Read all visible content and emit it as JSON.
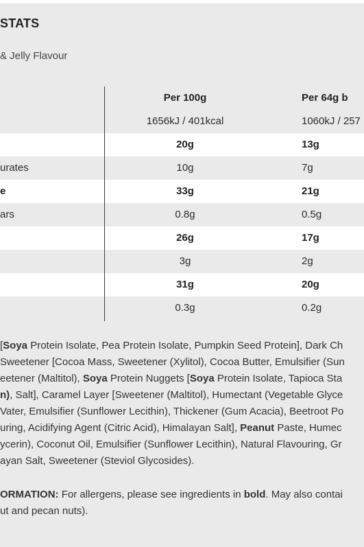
{
  "header": {
    "title": "STATS",
    "flavour": "& Jelly Flavour"
  },
  "table": {
    "col1_header": "Per 100g",
    "col2_header": "Per 64g b",
    "energy_col1": "1656kJ / 401kcal",
    "energy_col2": "1060kJ / 257",
    "rows": [
      {
        "label": "",
        "v1": "20g",
        "v2": "13g",
        "bold": true
      },
      {
        "label": "urates",
        "v1": "10g",
        "v2": "7g",
        "bold": false
      },
      {
        "label": "e",
        "v1": "33g",
        "v2": "21g",
        "bold": true
      },
      {
        "label": "ars",
        "v1": "0.8g",
        "v2": "0.5g",
        "bold": false
      },
      {
        "label": "",
        "v1": "26g",
        "v2": "17g",
        "bold": true
      },
      {
        "label": "",
        "v1": "3g",
        "v2": "2g",
        "bold": false
      },
      {
        "label": "",
        "v1": "31g",
        "v2": "20g",
        "bold": true
      },
      {
        "label": "",
        "v1": "0.3g",
        "v2": "0.2g",
        "bold": false
      }
    ]
  },
  "ingredients": {
    "l1_a": "[",
    "l1_b": "Soya",
    "l1_c": " Protein Isolate, Pea Protein Isolate, Pumpkin Seed Protein], Dark Ch",
    "l2": "Sweetener [Cocoa Mass, Sweetener (Xylitol), Cocoa Butter, Emulsifier (Sun",
    "l3_a": "eetener (Maltitol), ",
    "l3_b": "Soya",
    "l3_c": " Protein Nuggets [",
    "l3_d": "Soya",
    "l3_e": " Protein Isolate, Tapioca Sta",
    "l4_a": "n)",
    "l4_b": ", Salt], Caramel Layer [Sweetener (Maltitol), Humectant (Vegetable Glyce",
    "l5": "Vater, Emulsifier (Sunflower Lecithin), Thickener (Gum Acacia), Beetroot Po",
    "l6_a": "uring, Acidifying Agent (Citric Acid), Himalayan Salt], ",
    "l6_b": "Peanut",
    "l6_c": " Paste, Humec",
    "l7": "ycerin), Coconut Oil, Emulsifier (Sunflower Lecithin), Natural Flavouring, Gr",
    "l8": "ayan Salt, Sweetener (Steviol Glycosides)."
  },
  "allergy": {
    "label": "ORMATION:",
    "t1": " For allergens, please see ingredients in ",
    "bold_word": "bold",
    "t2": ". May also contai",
    "l2": "ut and pecan nuts)."
  }
}
